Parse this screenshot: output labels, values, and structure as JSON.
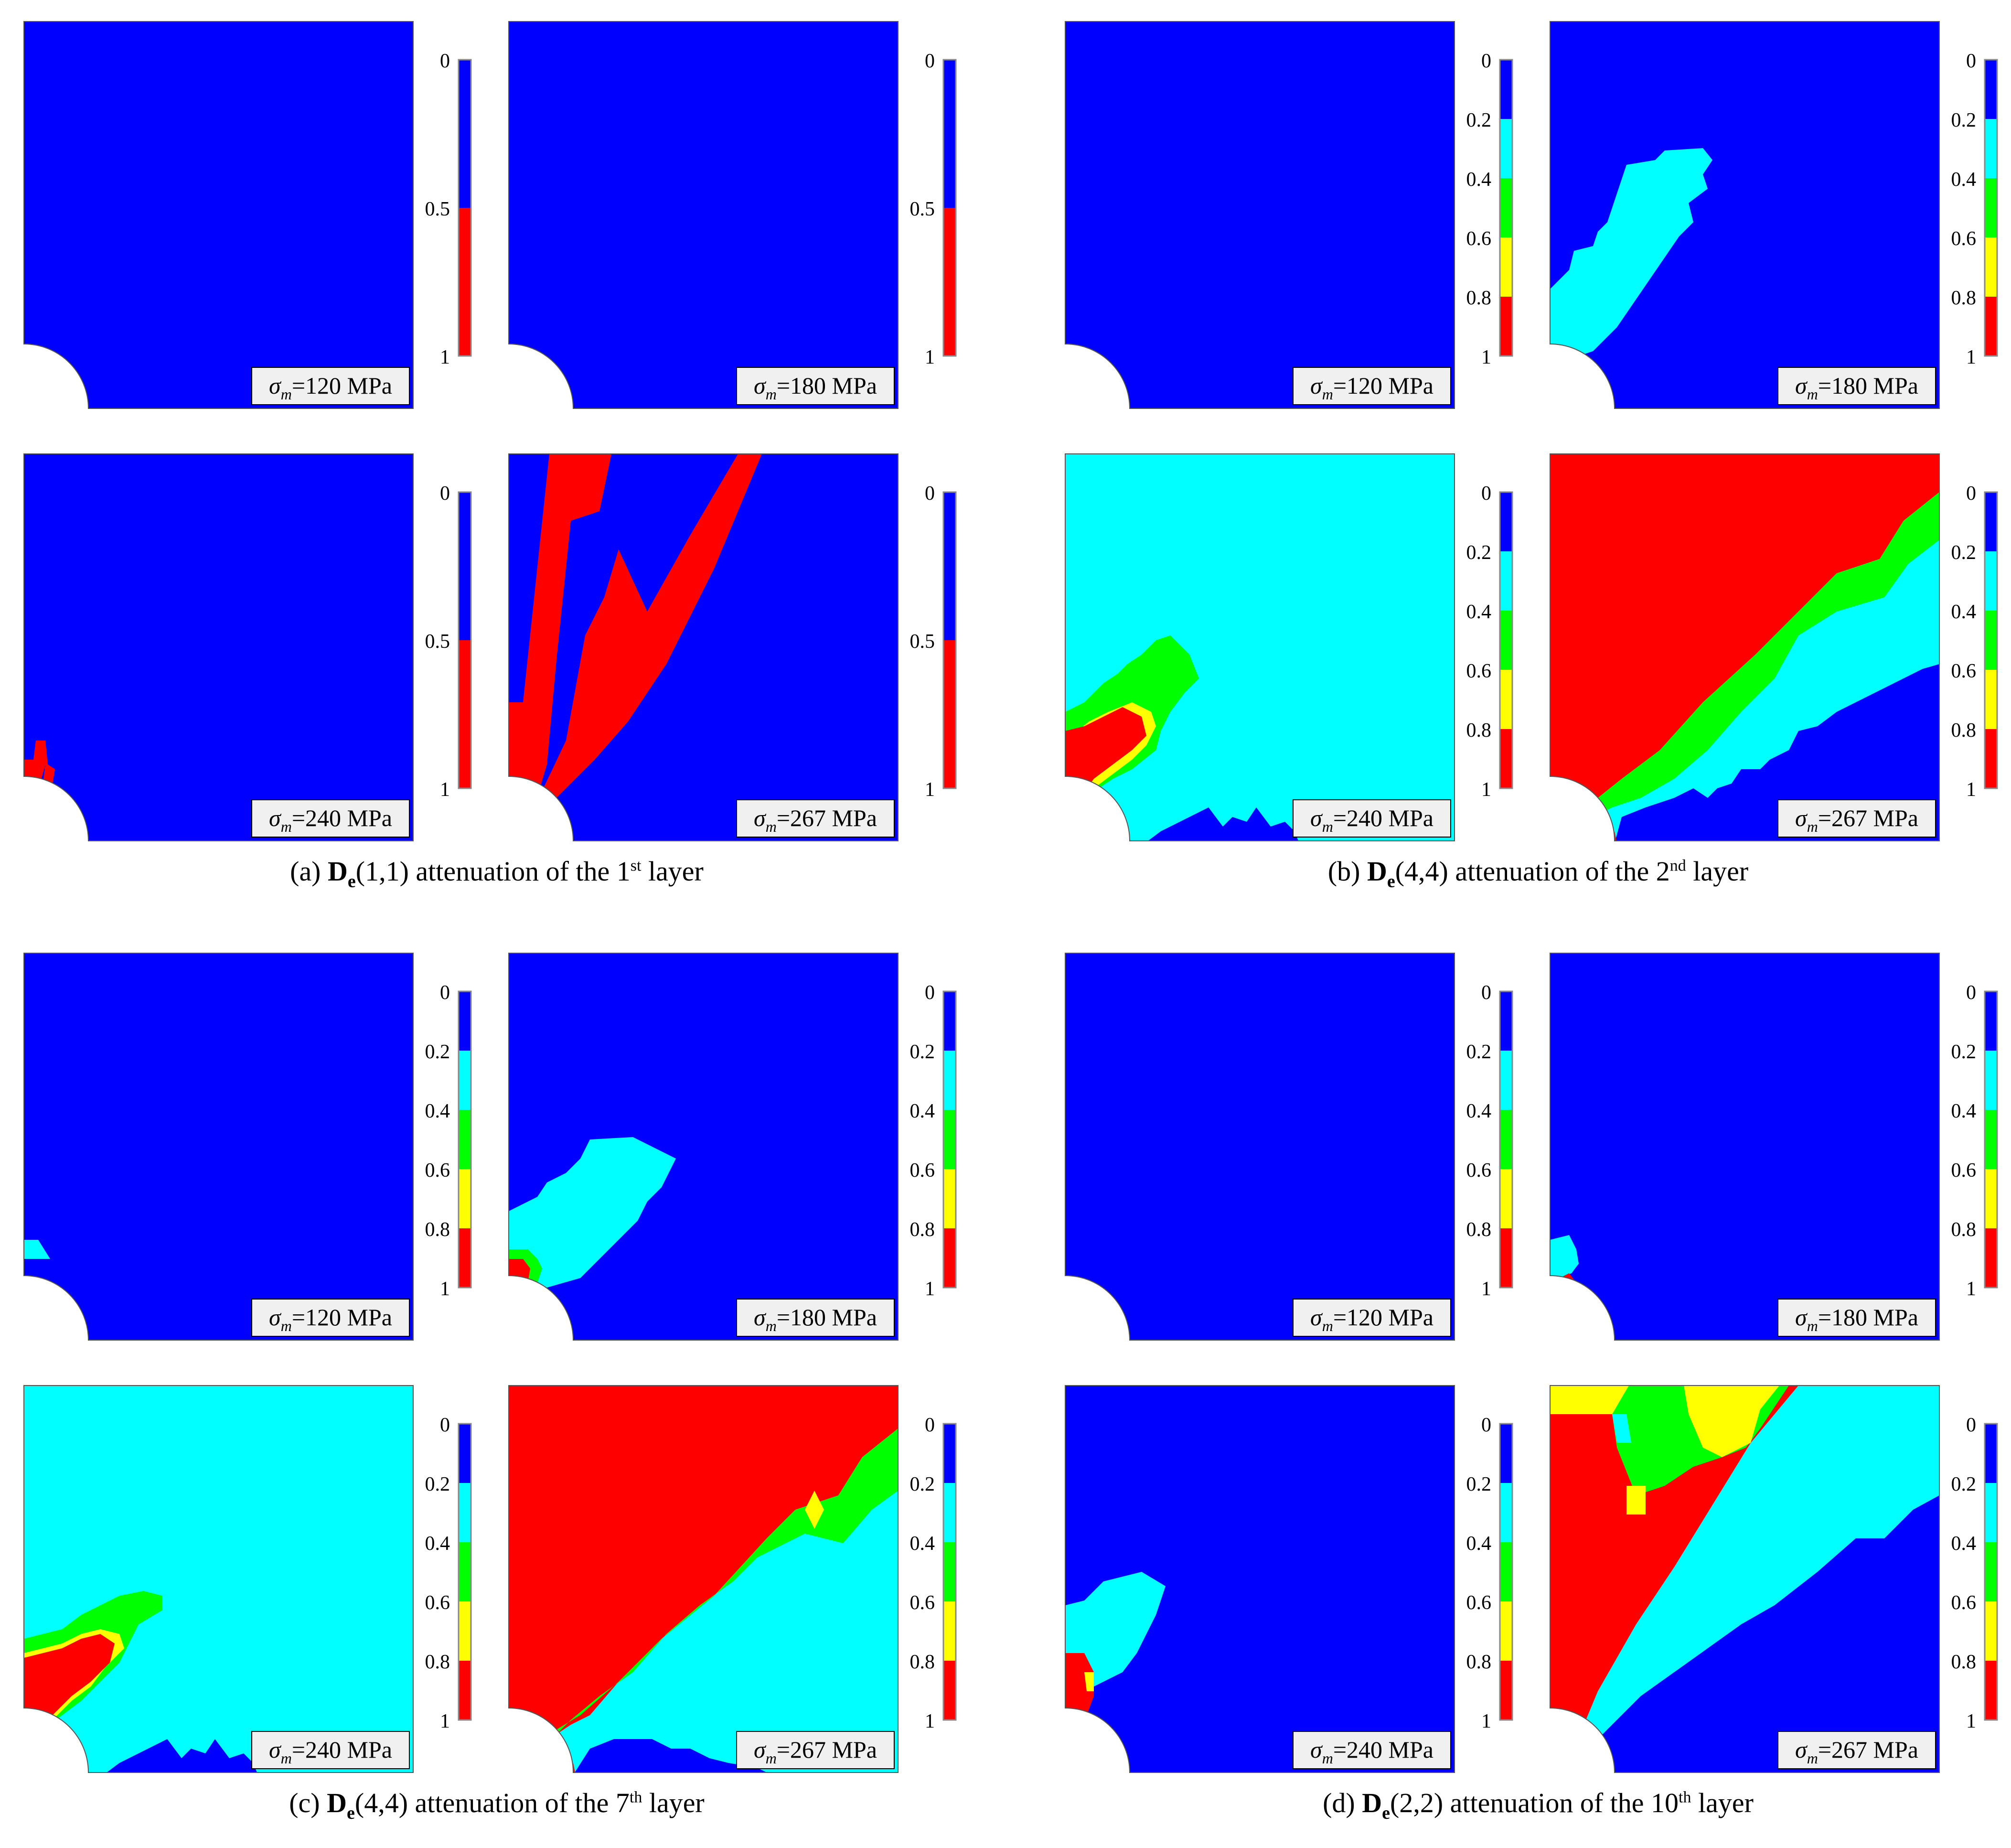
{
  "figure": {
    "sigma_symbol": "σ",
    "sigma_sub": "m",
    "panels": [
      {
        "id": "a",
        "caption": {
          "prefix": "(a) ",
          "bold": "D",
          "sub": "e",
          "indices": "(1,1)",
          "mid": " attenuation of the ",
          "ord": "1",
          "sup": "st",
          "tail": " layer"
        },
        "colorbar": {
          "levels": [
            "0",
            "0.5",
            "1"
          ],
          "colors": [
            "#0000ff",
            "#ff0000"
          ]
        },
        "maps": [
          {
            "value": "=120 MPa",
            "stage": 0
          },
          {
            "value": "=180 MPa",
            "stage": 1
          },
          {
            "value": "=240 MPa",
            "stage": 2
          },
          {
            "value": "=267 MPa",
            "stage": 3
          }
        ]
      },
      {
        "id": "b",
        "caption": {
          "prefix": "(b) ",
          "bold": "D",
          "sub": "e",
          "indices": "(4,4)",
          "mid": " attenuation of the ",
          "ord": "2",
          "sup": "nd",
          "tail": " layer"
        },
        "colorbar": {
          "levels": [
            "0",
            "0.2",
            "0.4",
            "0.6",
            "0.8",
            "1"
          ],
          "colors": [
            "#0000ff",
            "#00ffff",
            "#00ff00",
            "#ffff00",
            "#ff0000"
          ]
        },
        "maps": [
          {
            "value": "=120 MPa",
            "stage": 0
          },
          {
            "value": "=180 MPa",
            "stage": 1
          },
          {
            "value": "=240 MPa",
            "stage": 2
          },
          {
            "value": "=267 MPa",
            "stage": 3
          }
        ]
      },
      {
        "id": "c",
        "caption": {
          "prefix": "(c) ",
          "bold": "D",
          "sub": "e",
          "indices": "(4,4)",
          "mid": " attenuation of the ",
          "ord": "7",
          "sup": "th",
          "tail": " layer"
        },
        "colorbar": {
          "levels": [
            "0",
            "0.2",
            "0.4",
            "0.6",
            "0.8",
            "1"
          ],
          "colors": [
            "#0000ff",
            "#00ffff",
            "#00ff00",
            "#ffff00",
            "#ff0000"
          ]
        },
        "maps": [
          {
            "value": "=120 MPa",
            "stage": 0
          },
          {
            "value": "=180 MPa",
            "stage": 1
          },
          {
            "value": "=240 MPa",
            "stage": 2
          },
          {
            "value": "=267 MPa",
            "stage": 3
          }
        ]
      },
      {
        "id": "d",
        "caption": {
          "prefix": "(d) ",
          "bold": "D",
          "sub": "e",
          "indices": "(2,2)",
          "mid": " attenuation of the ",
          "ord": "10",
          "sup": "th",
          "tail": " layer"
        },
        "colorbar": {
          "levels": [
            "0",
            "0.2",
            "0.4",
            "0.6",
            "0.8",
            "1"
          ],
          "colors": [
            "#0000ff",
            "#00ffff",
            "#00ff00",
            "#ffff00",
            "#ff0000"
          ]
        },
        "maps": [
          {
            "value": "=120 MPa",
            "stage": 0
          },
          {
            "value": "=180 MPa",
            "stage": 1
          },
          {
            "value": "=240 MPa",
            "stage": 2
          },
          {
            "value": "=267 MPa",
            "stage": 3
          }
        ]
      }
    ]
  }
}
